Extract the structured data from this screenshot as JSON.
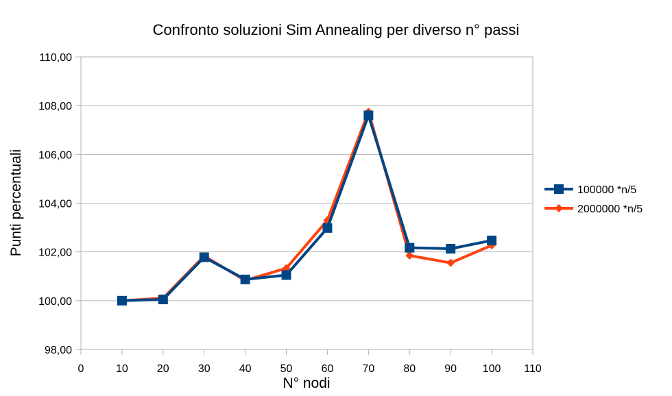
{
  "chart_data": {
    "type": "line",
    "title": "Confronto soluzioni Sim Annealing per diverso n° passi",
    "xlabel": "N° nodi",
    "ylabel": "Punti percentuali",
    "xlim": [
      0,
      110
    ],
    "ylim": [
      98,
      110
    ],
    "x_ticks": [
      "0",
      "10",
      "20",
      "30",
      "40",
      "50",
      "60",
      "70",
      "80",
      "90",
      "100",
      "110"
    ],
    "x_tick_values": [
      0,
      10,
      20,
      30,
      40,
      50,
      60,
      70,
      80,
      90,
      100,
      110
    ],
    "y_ticks": [
      "98,00",
      "100,00",
      "102,00",
      "104,00",
      "106,00",
      "108,00",
      "110,00"
    ],
    "y_tick_values": [
      98,
      100,
      102,
      104,
      106,
      108,
      110
    ],
    "grid": "horizontal",
    "legend_position": "right",
    "x": [
      10,
      20,
      30,
      40,
      50,
      60,
      70,
      80,
      90,
      100
    ],
    "series": [
      {
        "name": "100000 *n/5",
        "color": "#004586",
        "marker": "square",
        "values": [
          100.0,
          100.05,
          101.78,
          100.87,
          101.05,
          102.98,
          107.6,
          102.17,
          102.13,
          102.47
        ]
      },
      {
        "name": "2000000 *n/5",
        "color": "#ff420e",
        "marker": "diamond",
        "values": [
          100.0,
          100.1,
          101.83,
          100.83,
          101.33,
          103.3,
          107.75,
          101.85,
          101.55,
          102.27
        ]
      }
    ]
  }
}
